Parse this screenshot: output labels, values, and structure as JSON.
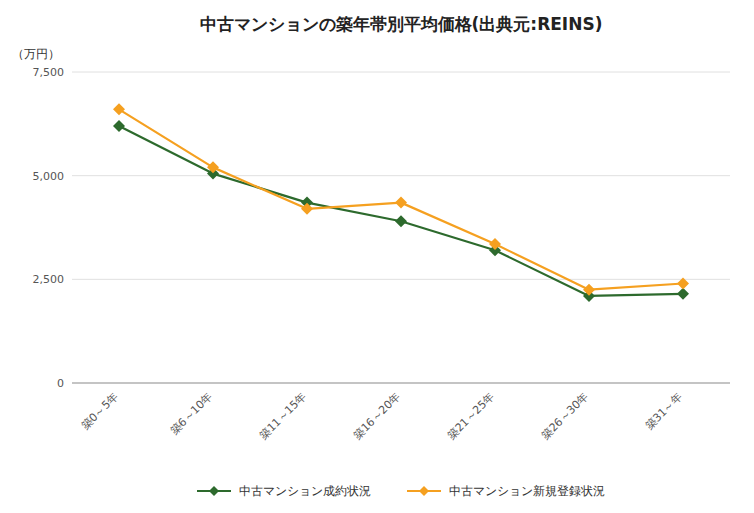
{
  "chart_data": {
    "type": "line",
    "title": "中古マンションの築年帯別平均価格(出典元:REINS)",
    "ylabel": "（万円）",
    "categories": [
      "築0～5年",
      "築6～10年",
      "築11～15年",
      "築16～20年",
      "築21～25年",
      "築26～30年",
      "築31～年"
    ],
    "series": [
      {
        "name": "中古マンション成約状況",
        "color": "#2d6a2d",
        "marker": "diamond",
        "values": [
          6200,
          5050,
          4350,
          3900,
          3200,
          2100,
          2150
        ]
      },
      {
        "name": "中古マンション新規登録状況",
        "color": "#f5a020",
        "marker": "diamond",
        "values": [
          6600,
          5200,
          4200,
          4350,
          3350,
          2250,
          2400
        ]
      }
    ],
    "ylim": [
      0,
      7500
    ],
    "yticks": [
      0,
      {
        "value": 2500,
        "label": "2,500"
      },
      {
        "value": 5000,
        "label": "5,000"
      },
      {
        "value": 7500,
        "label": "7,500"
      }
    ],
    "grid": true,
    "legend": "bottom"
  }
}
